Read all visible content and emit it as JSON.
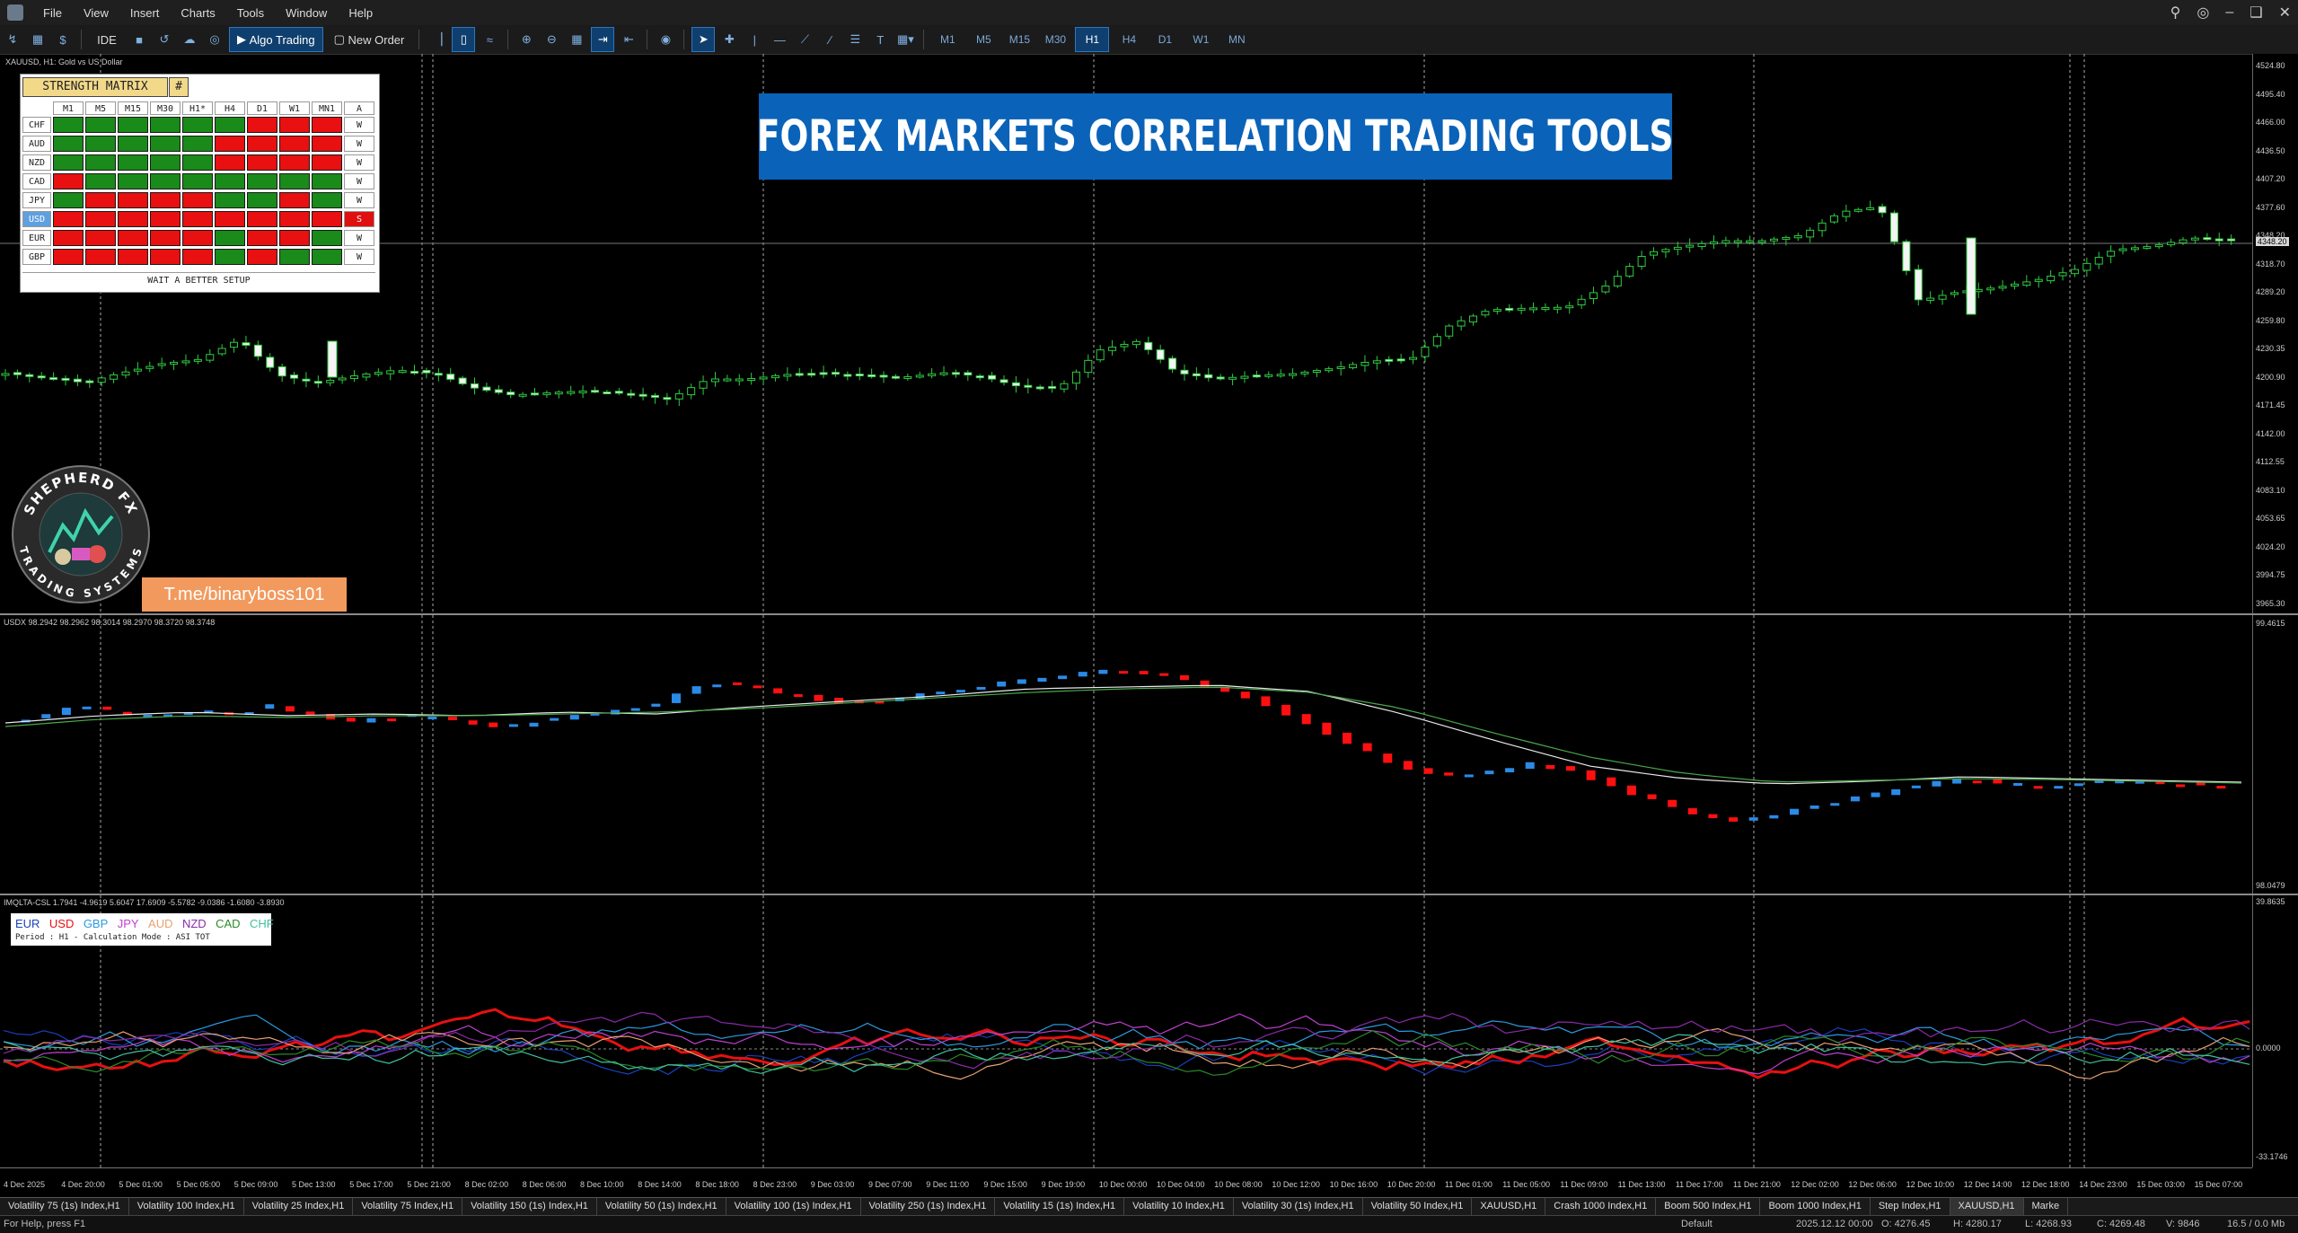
{
  "menu": {
    "items": [
      "File",
      "View",
      "Insert",
      "Charts",
      "Tools",
      "Window",
      "Help"
    ]
  },
  "toolbar": {
    "ide": "IDE",
    "algo_trading": "Algo Trading",
    "new_order": "New Order",
    "timeframes": [
      "M1",
      "M5",
      "M15",
      "M30",
      "H1",
      "H4",
      "D1",
      "W1",
      "MN"
    ],
    "active_timeframe": "H1"
  },
  "main_chart": {
    "info": "XAUUSD, H1:  Gold vs US Dollar",
    "price_labels": [
      "4524.80",
      "4495.40",
      "4466.00",
      "4436.50",
      "4407.20",
      "4377.60",
      "4348.20",
      "4318.70",
      "4289.20",
      "4259.80",
      "4230.35",
      "4200.90",
      "4171.45",
      "4142.00",
      "4112.55",
      "4083.10",
      "4053.65",
      "4024.20",
      "3994.75",
      "3965.30"
    ],
    "current_price": "4348.20"
  },
  "strength_matrix": {
    "title": "STRENGTH MATRIX",
    "hash": "#",
    "columns": [
      "M1",
      "M5",
      "M15",
      "M30",
      "H1*",
      "H4",
      "D1",
      "W1",
      "MN1",
      "A"
    ],
    "rows": [
      {
        "cur": "CHF",
        "cells": [
          "g",
          "g",
          "g",
          "g",
          "g",
          "g",
          "r",
          "r",
          "r"
        ],
        "a": "W"
      },
      {
        "cur": "AUD",
        "cells": [
          "g",
          "g",
          "g",
          "g",
          "g",
          "r",
          "r",
          "r",
          "r"
        ],
        "a": "W"
      },
      {
        "cur": "NZD",
        "cells": [
          "g",
          "g",
          "g",
          "g",
          "g",
          "r",
          "r",
          "r",
          "r"
        ],
        "a": "W"
      },
      {
        "cur": "CAD",
        "cells": [
          "r",
          "g",
          "g",
          "g",
          "g",
          "g",
          "g",
          "g",
          "g"
        ],
        "a": "W"
      },
      {
        "cur": "JPY",
        "cells": [
          "g",
          "r",
          "r",
          "r",
          "r",
          "g",
          "g",
          "r",
          "g"
        ],
        "a": "W"
      },
      {
        "cur": "USD",
        "cells": [
          "r",
          "r",
          "r",
          "r",
          "r",
          "r",
          "r",
          "r",
          "r"
        ],
        "a": "S"
      },
      {
        "cur": "EUR",
        "cells": [
          "r",
          "r",
          "r",
          "r",
          "r",
          "g",
          "r",
          "r",
          "g"
        ],
        "a": "W"
      },
      {
        "cur": "GBP",
        "cells": [
          "r",
          "r",
          "r",
          "r",
          "r",
          "g",
          "r",
          "g",
          "g"
        ],
        "a": "W"
      }
    ],
    "selected_currency": "USD",
    "setup": "WAIT A BETTER SETUP",
    "colors": {
      "green": "#1a8a1a",
      "red": "#e81010"
    }
  },
  "banner": {
    "text": "FOREX MARKETS CORRELATION TRADING TOOLS"
  },
  "logo": {
    "top_text": "SHEPHERD FX",
    "bottom_text": "TRADING SYSTEMS"
  },
  "telegram": {
    "label": "T.me/binaryboss101"
  },
  "usdx": {
    "info": "USDX 98.2942 98.2962 98.3014 98.2970 98.3720 98.3748",
    "top_label": "99.4615",
    "bottom_label": "98.0479"
  },
  "csl": {
    "info": "IMQLTA-CSL 1.7941 -4.9619 5.6047 17.6909 -5.5782 -9.0386 -1.6080 -3.8930",
    "top_label": "39.8635",
    "zero_label": "0.0000",
    "bottom_label": "-33.1746",
    "legend": [
      {
        "name": "EUR",
        "color": "#1a3fbf"
      },
      {
        "name": "USD",
        "color": "#e81010"
      },
      {
        "name": "GBP",
        "color": "#2a9ae0"
      },
      {
        "name": "JPY",
        "color": "#c040d0"
      },
      {
        "name": "AUD",
        "color": "#e8a070"
      },
      {
        "name": "NZD",
        "color": "#8a2aa8"
      },
      {
        "name": "CAD",
        "color": "#2a8a2a"
      },
      {
        "name": "CHF",
        "color": "#40c0a0"
      }
    ],
    "period_text": "Period : H1 - Calculation Mode : ASI TOT"
  },
  "time_axis": [
    "4 Dec 2025",
    "4 Dec 20:00",
    "5 Dec 01:00",
    "5 Dec 05:00",
    "5 Dec 09:00",
    "5 Dec 13:00",
    "5 Dec 17:00",
    "5 Dec 21:00",
    "8 Dec 02:00",
    "8 Dec 06:00",
    "8 Dec 10:00",
    "8 Dec 14:00",
    "8 Dec 18:00",
    "8 Dec 23:00",
    "9 Dec 03:00",
    "9 Dec 07:00",
    "9 Dec 11:00",
    "9 Dec 15:00",
    "9 Dec 19:00",
    "10 Dec 00:00",
    "10 Dec 04:00",
    "10 Dec 08:00",
    "10 Dec 12:00",
    "10 Dec 16:00",
    "10 Dec 20:00",
    "11 Dec 01:00",
    "11 Dec 05:00",
    "11 Dec 09:00",
    "11 Dec 13:00",
    "11 Dec 17:00",
    "11 Dec 21:00",
    "12 Dec 02:00",
    "12 Dec 06:00",
    "12 Dec 10:00",
    "12 Dec 14:00",
    "12 Dec 18:00",
    "14 Dec 23:00",
    "15 Dec 03:00",
    "15 Dec 07:00"
  ],
  "tabs": [
    "Volatility 75 (1s) Index,H1",
    "Volatility 100 Index,H1",
    "Volatility 25 Index,H1",
    "Volatility 75 Index,H1",
    "Volatility 150 (1s) Index,H1",
    "Volatility 50 (1s) Index,H1",
    "Volatility 100 (1s) Index,H1",
    "Volatility 250 (1s) Index,H1",
    "Volatility 15 (1s) Index,H1",
    "Volatility 10 Index,H1",
    "Volatility 30 (1s) Index,H1",
    "Volatility 50 Index,H1",
    "XAUUSD,H1",
    "Crash 1000 Index,H1",
    "Boom 500 Index,H1",
    "Boom 1000 Index,H1",
    "Step Index,H1",
    "XAUUSD,H1",
    "Marke"
  ],
  "active_tab": 17,
  "status": {
    "help": "For Help, press F1",
    "profile": "Default",
    "datetime": "2025.12.12 00:00",
    "open": "O: 4276.45",
    "high": "H: 4280.17",
    "low": "L: 4268.93",
    "close": "C: 4269.48",
    "volume": "V: 9846",
    "traffic": "16.5 / 0.0 Mb"
  }
}
